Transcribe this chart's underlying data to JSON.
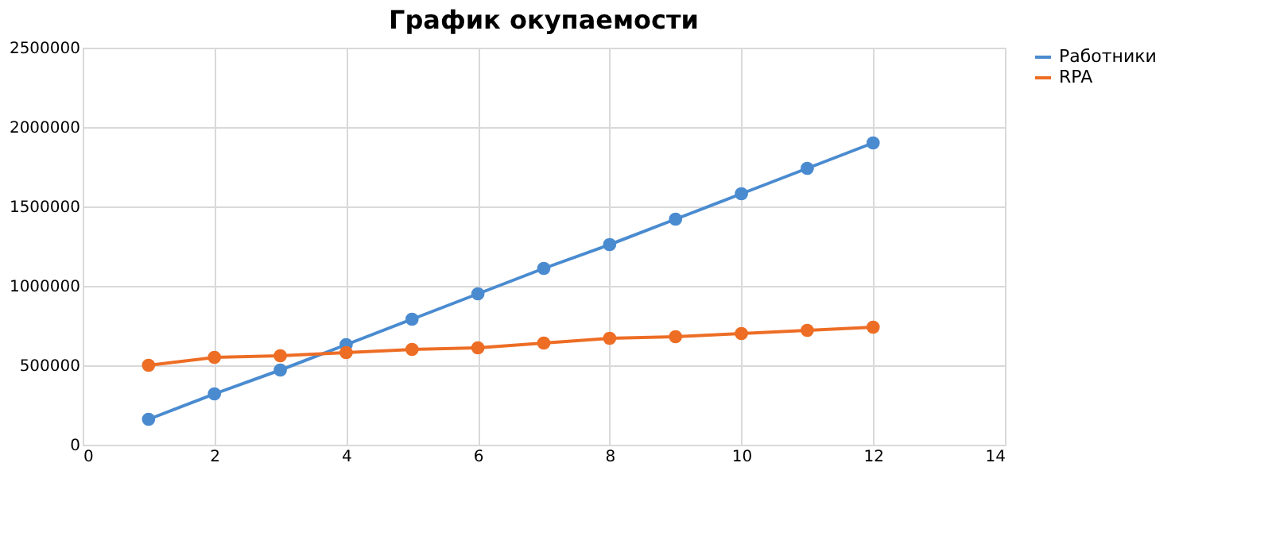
{
  "chart_data": {
    "type": "line",
    "title": "График окупаемости",
    "x": [
      1,
      2,
      3,
      4,
      5,
      6,
      7,
      8,
      9,
      10,
      11,
      12
    ],
    "series": [
      {
        "name": "Работники",
        "color": "#4a8bd0",
        "values": [
          160000,
          320000,
          470000,
          630000,
          790000,
          950000,
          1110000,
          1260000,
          1420000,
          1580000,
          1740000,
          1900000
        ]
      },
      {
        "name": "RPA",
        "color": "#ed6d25",
        "values": [
          500000,
          550000,
          560000,
          580000,
          600000,
          610000,
          640000,
          670000,
          680000,
          700000,
          720000,
          740000
        ]
      }
    ],
    "xlim": [
      0,
      14
    ],
    "xticks": [
      0,
      2,
      4,
      6,
      8,
      10,
      12,
      14
    ],
    "ylim": [
      0,
      2500000
    ],
    "yticks": [
      0,
      500000,
      1000000,
      1500000,
      2000000,
      2500000
    ],
    "grid": true,
    "legend": "right",
    "marker": "circle",
    "line_style": "solid"
  }
}
